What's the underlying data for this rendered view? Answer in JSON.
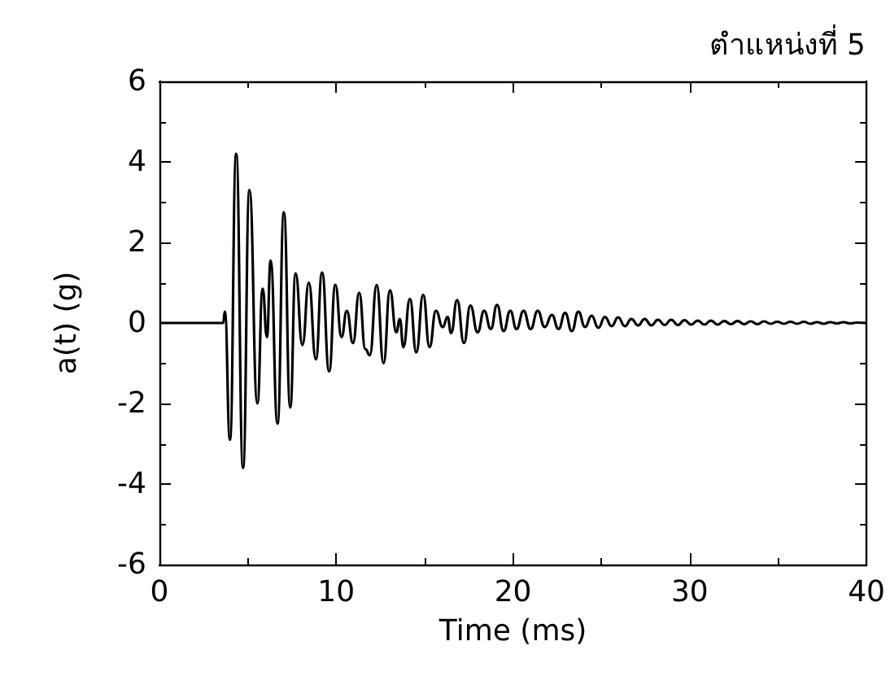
{
  "chart_data": {
    "type": "line",
    "title": "ตำแหน่งที่ 5",
    "xlabel": "Time (ms)",
    "ylabel": "a(t) (g)",
    "xlim": [
      0,
      40
    ],
    "xticks": [
      0,
      10,
      20,
      30,
      40
    ],
    "ylim": [
      -6,
      6
    ],
    "yticks": [
      -6,
      -4,
      -2,
      0,
      2,
      4,
      6
    ],
    "grid": false,
    "marker": "none",
    "line_style": "solid",
    "series": [
      {
        "color": "#000000",
        "x": [
          0,
          3.6,
          3.7,
          3.99,
          4.34,
          4.73,
          5.09,
          5.54,
          5.84,
          6.08,
          6.29,
          6.68,
          7.04,
          7.4,
          7.7,
          8.09,
          8.45,
          8.85,
          9.2,
          9.6,
          9.95,
          10.3,
          10.6,
          10.95,
          11.3,
          11.65,
          11.9,
          12.29,
          12.68,
          13.04,
          13.4,
          13.6,
          13.8,
          14.17,
          14.53,
          14.92,
          15.28,
          15.64,
          16.03,
          16.3,
          16.5,
          16.84,
          17.23,
          17.59,
          18.0,
          18.37,
          18.75,
          19.1,
          19.47,
          19.85,
          20.2,
          20.6,
          21.0,
          21.4,
          21.8,
          22.2,
          22.58,
          22.95,
          23.33,
          23.7,
          24.08,
          24.45,
          24.83,
          25.2,
          25.58,
          25.95,
          26.33,
          26.7,
          27.08,
          27.45,
          27.83,
          28.2,
          28.58,
          28.95,
          29.33,
          29.7,
          30.08,
          30.45,
          30.83,
          31.2,
          31.58,
          31.95,
          32.33,
          32.7,
          33.08,
          33.45,
          33.83,
          34.2,
          34.58,
          34.95,
          35.33,
          35.7,
          36.08,
          36.45,
          36.83,
          37.2,
          37.58,
          37.95,
          38.33,
          38.7,
          39.08,
          39.45,
          40
        ],
        "values": [
          0,
          0,
          0.28,
          -2.9,
          4.2,
          -3.6,
          3.3,
          -2.0,
          0.85,
          -0.35,
          1.55,
          -2.5,
          2.75,
          -2.1,
          1.23,
          -0.55,
          1.0,
          -0.9,
          1.25,
          -1.2,
          0.95,
          -0.35,
          0.3,
          -0.5,
          0.75,
          -0.65,
          -0.8,
          0.94,
          -1.0,
          0.81,
          -0.23,
          0.1,
          -0.6,
          0.6,
          -0.73,
          0.7,
          -0.6,
          0.3,
          -0.1,
          0.15,
          -0.25,
          0.57,
          -0.5,
          0.43,
          -0.23,
          0.3,
          -0.15,
          0.45,
          -0.2,
          0.3,
          -0.15,
          0.3,
          -0.15,
          0.3,
          -0.1,
          0.2,
          -0.15,
          0.25,
          -0.2,
          0.28,
          -0.1,
          0.18,
          -0.12,
          0.15,
          -0.08,
          0.14,
          -0.08,
          0.1,
          -0.06,
          0.1,
          -0.06,
          0.08,
          -0.05,
          0.08,
          -0.05,
          0.07,
          -0.04,
          0.06,
          -0.04,
          0.06,
          -0.04,
          0.05,
          -0.03,
          0.05,
          -0.03,
          0.04,
          -0.03,
          0.04,
          -0.02,
          0.03,
          -0.02,
          0.03,
          -0.02,
          0.03,
          -0.02,
          0.02,
          -0.02,
          0.02,
          -0.01,
          0.02,
          -0.01,
          0.01,
          0
        ]
      }
    ]
  }
}
